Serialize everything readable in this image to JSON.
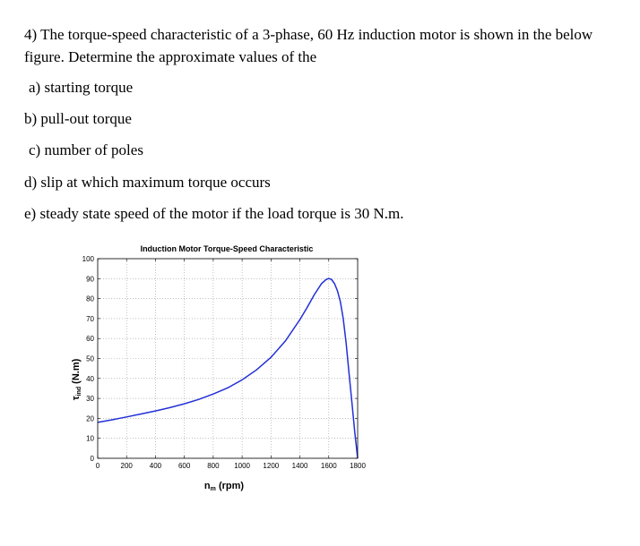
{
  "question": {
    "text": "4) The torque-speed characteristic of a 3-phase, 60 Hz induction motor is shown in the below figure. Determine the approximate values of the",
    "parts": [
      "a) starting torque",
      "b) pull-out torque",
      "c) number of poles",
      "d) slip at which maximum torque occurs",
      "e) steady state speed of the motor if the load torque is 30 N.m."
    ]
  },
  "chart_data": {
    "type": "line",
    "title": "Induction Motor Torque-Speed Characteristic",
    "xlabel_main": "n",
    "xlabel_sub": "m",
    "xlabel_unit": " (rpm)",
    "ylabel_main": "τ",
    "ylabel_sub": "ind",
    "ylabel_unit": " (N.m)",
    "xlim": [
      0,
      1800
    ],
    "ylim": [
      0,
      100
    ],
    "xticks": [
      0,
      200,
      400,
      600,
      800,
      1000,
      1200,
      1400,
      1600,
      1800
    ],
    "yticks": [
      0,
      10,
      20,
      30,
      40,
      50,
      60,
      70,
      80,
      90,
      100
    ],
    "grid": true,
    "line_color": "#2230d6",
    "series": [
      {
        "x": [
          0,
          100,
          200,
          300,
          400,
          500,
          600,
          700,
          800,
          900,
          1000,
          1100,
          1200,
          1300,
          1400,
          1450,
          1500,
          1550,
          1580,
          1600,
          1620,
          1640,
          1660,
          1680,
          1700,
          1720,
          1740,
          1760,
          1780,
          1800
        ],
        "y": [
          18,
          19.3,
          20.7,
          22.2,
          23.7,
          25.4,
          27.3,
          29.5,
          32.2,
          35.3,
          39.3,
          44.3,
          50.6,
          58.8,
          69.5,
          75.5,
          82,
          87.5,
          89.5,
          90.1,
          89.5,
          87.5,
          84,
          78.5,
          70,
          58,
          43,
          28,
          13,
          0
        ]
      }
    ]
  }
}
